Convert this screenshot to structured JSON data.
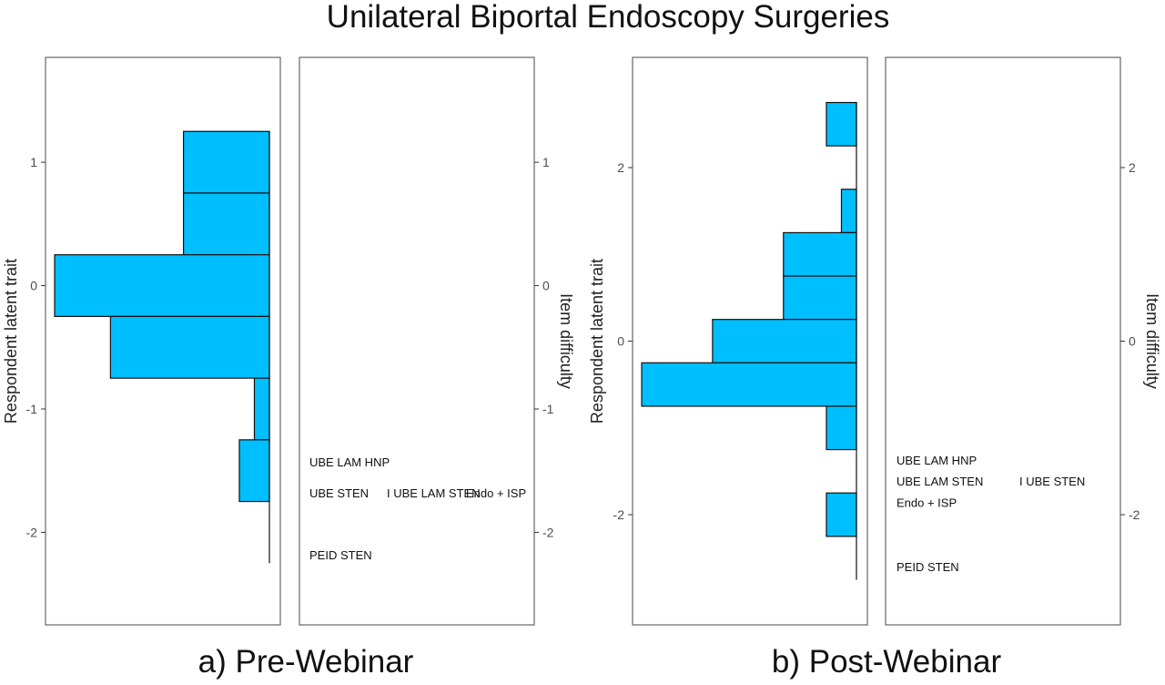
{
  "title": "Unilateral Biportal Endoscopy Surgeries",
  "chart_data": [
    {
      "type": "bar",
      "subtitle": "a) Pre-Webinar",
      "ylabel_left": "Respondent latent trait",
      "ylabel_right": "Item difficulty",
      "ylim": [
        -2.75,
        1.85
      ],
      "ticks": [
        -2,
        -1,
        0,
        1
      ],
      "bar_color": "#00BFFF",
      "bins": [
        {
          "from": 0.75,
          "to": 1.25,
          "count": 0.4
        },
        {
          "from": 0.25,
          "to": 0.75,
          "count": 0.4
        },
        {
          "from": -0.25,
          "to": 0.25,
          "count": 1.0
        },
        {
          "from": -0.75,
          "to": -0.25,
          "count": 0.74
        },
        {
          "from": -1.25,
          "to": -0.75,
          "count": 0.07
        },
        {
          "from": -1.75,
          "to": -1.25,
          "count": 0.14
        }
      ],
      "line_ylim": [
        -2.25,
        1.25
      ],
      "items": [
        {
          "label": "UBE LAM HNP",
          "difficulty": -1.43,
          "pos": 0
        },
        {
          "label": "UBE STEN",
          "difficulty": -1.68,
          "pos": 0
        },
        {
          "label": "I UBE LAM STEN",
          "difficulty": -1.68,
          "pos": 1
        },
        {
          "label": "Endo + ISP",
          "difficulty": -1.68,
          "pos": 2
        },
        {
          "label": "PEID STEN",
          "difficulty": -2.18,
          "pos": 0
        }
      ]
    },
    {
      "type": "bar",
      "subtitle": "b) Post-Webinar",
      "ylabel_left": "Respondent latent trait",
      "ylabel_right": "Item difficulty",
      "ylim": [
        -3.27,
        3.27
      ],
      "ticks": [
        -2,
        0,
        2
      ],
      "bar_color": "#00BFFF",
      "bins": [
        {
          "from": 2.25,
          "to": 2.75,
          "count": 0.14
        },
        {
          "from": 1.25,
          "to": 1.75,
          "count": 0.07
        },
        {
          "from": 0.75,
          "to": 1.25,
          "count": 0.34
        },
        {
          "from": 0.25,
          "to": 0.75,
          "count": 0.34
        },
        {
          "from": -0.25,
          "to": 0.25,
          "count": 0.67
        },
        {
          "from": -0.75,
          "to": -0.25,
          "count": 1.0
        },
        {
          "from": -1.25,
          "to": -0.75,
          "count": 0.14
        },
        {
          "from": -2.25,
          "to": -1.75,
          "count": 0.14
        }
      ],
      "line_ylim": [
        -2.75,
        2.75
      ],
      "items": [
        {
          "label": "UBE LAM HNP",
          "difficulty": -1.37,
          "pos": 0
        },
        {
          "label": "UBE LAM STEN",
          "difficulty": -1.61,
          "pos": 0
        },
        {
          "label": "I UBE STEN",
          "difficulty": -1.61,
          "pos": 1
        },
        {
          "label": "Endo + ISP",
          "difficulty": -1.86,
          "pos": 0
        },
        {
          "label": "PEID STEN",
          "difficulty": -2.6,
          "pos": 0
        }
      ]
    }
  ]
}
